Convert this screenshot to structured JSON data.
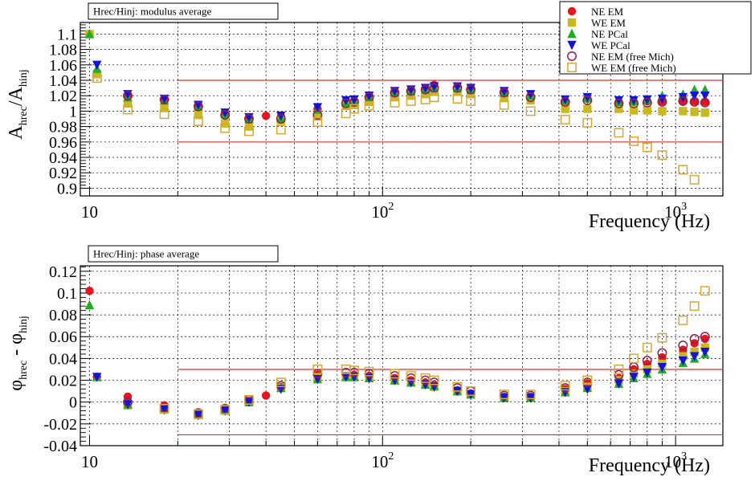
{
  "chart_data": [
    {
      "type": "scatter",
      "title": "Hrec/Hinj: modulus average",
      "xlabel": "Frequency (Hz)",
      "ylabel_main": "A",
      "ylabel_sub1": "hrec",
      "ylabel_mid": "/A",
      "ylabel_sub2": "hinj",
      "xscale": "log",
      "xlim": [
        9.3,
        1450
      ],
      "ylim": [
        0.89,
        1.115
      ],
      "xticks": [
        {
          "value": 10,
          "label": "10"
        },
        {
          "value": 100,
          "label": "10",
          "exp": "2"
        },
        {
          "value": 1000,
          "label": "10",
          "exp": "3"
        }
      ],
      "yticks": [
        {
          "value": 0.9,
          "label": "0.9"
        },
        {
          "value": 0.92,
          "label": "0.92"
        },
        {
          "value": 0.94,
          "label": "0.94"
        },
        {
          "value": 0.96,
          "label": "0.96"
        },
        {
          "value": 0.98,
          "label": "0.98"
        },
        {
          "value": 1.0,
          "label": "1"
        },
        {
          "value": 1.02,
          "label": "1.02"
        },
        {
          "value": 1.04,
          "label": "1.04"
        },
        {
          "value": 1.06,
          "label": "1.06"
        },
        {
          "value": 1.08,
          "label": "1.08"
        },
        {
          "value": 1.1,
          "label": "1.1"
        }
      ],
      "grid": true,
      "limit_lines": {
        "values": [
          0.96,
          1.04
        ],
        "x_range": [
          20,
          1450
        ],
        "color": "#e03030"
      },
      "legend_position": "top-right",
      "series": [
        {
          "name": "NE EM",
          "marker": "circle-filled",
          "color": "#e8141c",
          "x": [
            10,
            10.6,
            13.5,
            18,
            23.5,
            29,
            35,
            40,
            45,
            60,
            75,
            80,
            90,
            110,
            125,
            140,
            150,
            180,
            200,
            260,
            320,
            420,
            500,
            640,
            720,
            800,
            900,
            1060,
            1160,
            1260
          ],
          "y": [
            1.1,
            1.05,
            1.02,
            1.016,
            1.008,
            0.997,
            0.992,
            0.994,
            0.993,
            1.003,
            1.013,
            1.013,
            1.02,
            1.025,
            1.028,
            1.03,
            1.034,
            1.032,
            1.03,
            1.026,
            1.02,
            1.013,
            1.016,
            1.012,
            1.012,
            1.013,
            1.013,
            1.013,
            1.013,
            1.012
          ]
        },
        {
          "name": "WE EM",
          "marker": "square-filled",
          "color": "#c9b81e",
          "x": [
            10,
            10.6,
            13.5,
            18,
            23.5,
            29,
            35,
            45,
            60,
            75,
            80,
            90,
            110,
            125,
            140,
            150,
            180,
            200,
            260,
            320,
            420,
            500,
            640,
            720,
            800,
            900,
            1060,
            1160,
            1260
          ],
          "y": [
            1.1,
            1.048,
            1.01,
            1.004,
            0.995,
            0.984,
            0.98,
            0.988,
            0.993,
            1.007,
            1.008,
            1.012,
            1.018,
            1.02,
            1.022,
            1.025,
            1.025,
            1.022,
            1.017,
            1.014,
            1.003,
            1.003,
            1.003,
            1.001,
            1.001,
            1.0,
            1.0,
            0.999,
            0.998
          ]
        },
        {
          "name": "NE PCal",
          "marker": "triangle-up",
          "color": "#1fae1f",
          "x": [
            10,
            10.6,
            13.5,
            18,
            23.5,
            29,
            35,
            45,
            60,
            75,
            80,
            90,
            110,
            125,
            140,
            150,
            180,
            200,
            260,
            320,
            420,
            500,
            640,
            720,
            800,
            900,
            1060,
            1160,
            1260
          ],
          "y": [
            1.1,
            1.055,
            1.018,
            1.014,
            1.006,
            0.996,
            0.99,
            0.991,
            1.002,
            1.011,
            1.013,
            1.018,
            1.024,
            1.026,
            1.028,
            1.03,
            1.03,
            1.028,
            1.024,
            1.02,
            1.014,
            1.017,
            1.012,
            1.013,
            1.015,
            1.02,
            1.022,
            1.028,
            1.028
          ]
        },
        {
          "name": "WE PCal",
          "marker": "triangle-down",
          "color": "#1414d6",
          "x": [
            10.6,
            13.5,
            18,
            23.5,
            29,
            35,
            45,
            60,
            75,
            80,
            90,
            110,
            125,
            140,
            150,
            180,
            200,
            260,
            320,
            420,
            500,
            640,
            720,
            800,
            900,
            1060,
            1160,
            1260
          ],
          "y": [
            1.06,
            1.022,
            1.016,
            1.008,
            0.998,
            0.992,
            0.994,
            1.005,
            1.014,
            1.015,
            1.02,
            1.026,
            1.028,
            1.03,
            1.032,
            1.032,
            1.03,
            1.026,
            1.022,
            1.015,
            1.018,
            1.014,
            1.014,
            1.015,
            1.016,
            1.018,
            1.02,
            1.02
          ]
        },
        {
          "name": "NE EM (free Mich)",
          "marker": "circle-open",
          "color": "#8a2252",
          "x": [
            13.5,
            18,
            23.5,
            29,
            35,
            45,
            60,
            75,
            80,
            90,
            110,
            125,
            140,
            150,
            180,
            200,
            260,
            320,
            420,
            500,
            640,
            720,
            800,
            900,
            1060,
            1160,
            1260
          ],
          "y": [
            1.02,
            1.015,
            1.006,
            0.995,
            0.99,
            0.99,
            0.995,
            1.01,
            1.012,
            1.018,
            1.024,
            1.026,
            1.028,
            1.03,
            1.03,
            1.028,
            1.024,
            1.018,
            1.012,
            1.014,
            1.01,
            1.01,
            1.011,
            1.012,
            1.013,
            1.012,
            1.011
          ]
        },
        {
          "name": "WE EM (free Mich)",
          "marker": "square-open",
          "color": "#d4a83a",
          "x": [
            10.6,
            13.5,
            18,
            23.5,
            29,
            35,
            45,
            60,
            75,
            80,
            90,
            110,
            125,
            140,
            150,
            180,
            200,
            260,
            320,
            420,
            500,
            640,
            720,
            800,
            900,
            1060,
            1160
          ],
          "y": [
            1.043,
            1.002,
            0.996,
            0.987,
            0.978,
            0.974,
            0.976,
            0.986,
            0.997,
            1.003,
            1.007,
            1.011,
            1.013,
            1.015,
            1.018,
            1.016,
            1.013,
            1.008,
            1.0,
            0.989,
            0.985,
            0.972,
            0.961,
            0.953,
            0.943,
            0.924,
            0.911
          ]
        }
      ]
    },
    {
      "type": "scatter",
      "title": "Hrec/Hinj: phase average",
      "xlabel": "Frequency (Hz)",
      "ylabel_main": "φ",
      "ylabel_sub1": "hrec",
      "ylabel_mid": " - φ",
      "ylabel_sub2": "hinj",
      "xscale": "log",
      "xlim": [
        9.3,
        1450
      ],
      "ylim": [
        -0.04,
        0.125
      ],
      "xticks": [
        {
          "value": 10,
          "label": "10"
        },
        {
          "value": 100,
          "label": "10",
          "exp": "2"
        },
        {
          "value": 1000,
          "label": "10",
          "exp": "3"
        }
      ],
      "yticks": [
        {
          "value": -0.04,
          "label": "-0.04"
        },
        {
          "value": -0.02,
          "label": "-0.02"
        },
        {
          "value": 0,
          "label": "0"
        },
        {
          "value": 0.02,
          "label": "0.02"
        },
        {
          "value": 0.04,
          "label": "0.04"
        },
        {
          "value": 0.06,
          "label": "0.06"
        },
        {
          "value": 0.08,
          "label": "0.08"
        },
        {
          "value": 0.1,
          "label": "0.1"
        },
        {
          "value": 0.12,
          "label": "0.12"
        }
      ],
      "grid": true,
      "limit_lines": {
        "values": [
          -0.03,
          0.03
        ],
        "x_range": [
          20,
          1450
        ],
        "color": "#e03030"
      },
      "series": [
        {
          "name": "NE EM",
          "marker": "circle-filled",
          "color": "#e8141c",
          "x": [
            10,
            10.6,
            13.5,
            18,
            23.5,
            29,
            35,
            40,
            45,
            60,
            75,
            80,
            90,
            110,
            125,
            140,
            150,
            180,
            200,
            260,
            320,
            420,
            500,
            640,
            720,
            800,
            900,
            1060,
            1160,
            1260
          ],
          "y": [
            0.102,
            0.023,
            0.005,
            -0.003,
            -0.01,
            -0.006,
            0.001,
            0.006,
            0.014,
            0.025,
            0.024,
            0.025,
            0.024,
            0.022,
            0.02,
            0.018,
            0.016,
            0.011,
            0.008,
            0.005,
            0.005,
            0.012,
            0.017,
            0.022,
            0.03,
            0.035,
            0.041,
            0.048,
            0.054,
            0.058
          ]
        },
        {
          "name": "WE EM",
          "marker": "square-filled",
          "color": "#c9b81e",
          "x": [
            13.5,
            18,
            23.5,
            29,
            35,
            45,
            60,
            75,
            80,
            90,
            110,
            125,
            140,
            150,
            180,
            200,
            260,
            320,
            420,
            500,
            640,
            720,
            800,
            900,
            1060,
            1160,
            1260
          ],
          "y": [
            -0.003,
            -0.007,
            -0.012,
            -0.008,
            0.0,
            0.013,
            0.022,
            0.024,
            0.023,
            0.022,
            0.02,
            0.018,
            0.016,
            0.014,
            0.01,
            0.007,
            0.004,
            0.004,
            0.01,
            0.014,
            0.02,
            0.026,
            0.03,
            0.035,
            0.042,
            0.046,
            0.05
          ]
        },
        {
          "name": "NE PCal",
          "marker": "triangle-up",
          "color": "#1fae1f",
          "x": [
            10,
            10.6,
            13.5,
            18,
            23.5,
            29,
            35,
            45,
            60,
            75,
            80,
            90,
            110,
            125,
            140,
            150,
            180,
            200,
            260,
            320,
            420,
            500,
            640,
            720,
            800,
            900,
            1060,
            1160,
            1260
          ],
          "y": [
            0.089,
            0.023,
            -0.002,
            -0.006,
            -0.011,
            -0.007,
            0.0,
            0.013,
            0.021,
            0.023,
            0.023,
            0.022,
            0.02,
            0.018,
            0.016,
            0.015,
            0.01,
            0.007,
            0.004,
            0.004,
            0.009,
            0.013,
            0.017,
            0.022,
            0.026,
            0.03,
            0.036,
            0.04,
            0.044
          ]
        },
        {
          "name": "WE PCal",
          "marker": "triangle-down",
          "color": "#1414d6",
          "x": [
            10.6,
            13.5,
            18,
            23.5,
            29,
            35,
            45,
            60,
            75,
            80,
            90,
            110,
            125,
            140,
            150,
            180,
            200,
            260,
            320,
            420,
            500,
            640,
            720,
            800,
            900,
            1060,
            1160,
            1260
          ],
          "y": [
            0.023,
            -0.002,
            -0.007,
            -0.012,
            -0.008,
            0.0,
            0.012,
            0.021,
            0.023,
            0.023,
            0.022,
            0.02,
            0.018,
            0.016,
            0.014,
            0.01,
            0.007,
            0.004,
            0.004,
            0.009,
            0.012,
            0.017,
            0.023,
            0.027,
            0.032,
            0.038,
            0.042,
            0.046
          ]
        },
        {
          "name": "NE EM (free Mich)",
          "marker": "circle-open",
          "color": "#8a2252",
          "x": [
            13.5,
            18,
            23.5,
            29,
            35,
            45,
            60,
            75,
            80,
            90,
            110,
            125,
            140,
            150,
            180,
            200,
            260,
            320,
            420,
            500,
            640,
            720,
            800,
            900,
            1060,
            1160,
            1260
          ],
          "y": [
            0.0,
            -0.005,
            -0.01,
            -0.006,
            0.002,
            0.015,
            0.026,
            0.027,
            0.027,
            0.026,
            0.024,
            0.022,
            0.02,
            0.018,
            0.013,
            0.01,
            0.006,
            0.006,
            0.013,
            0.018,
            0.025,
            0.032,
            0.038,
            0.045,
            0.052,
            0.058,
            0.06
          ]
        },
        {
          "name": "WE EM (free Mich)",
          "marker": "square-open",
          "color": "#d4a83a",
          "x": [
            18,
            23.5,
            29,
            35,
            45,
            60,
            75,
            80,
            90,
            110,
            125,
            140,
            150,
            180,
            200,
            260,
            320,
            420,
            500,
            640,
            720,
            800,
            900,
            1060,
            1160,
            1260
          ],
          "y": [
            -0.006,
            -0.011,
            -0.007,
            0.002,
            0.018,
            0.03,
            0.03,
            0.029,
            0.028,
            0.026,
            0.024,
            0.022,
            0.02,
            0.014,
            0.01,
            0.007,
            0.007,
            0.015,
            0.02,
            0.03,
            0.04,
            0.05,
            0.059,
            0.075,
            0.088,
            0.102
          ]
        }
      ]
    }
  ]
}
